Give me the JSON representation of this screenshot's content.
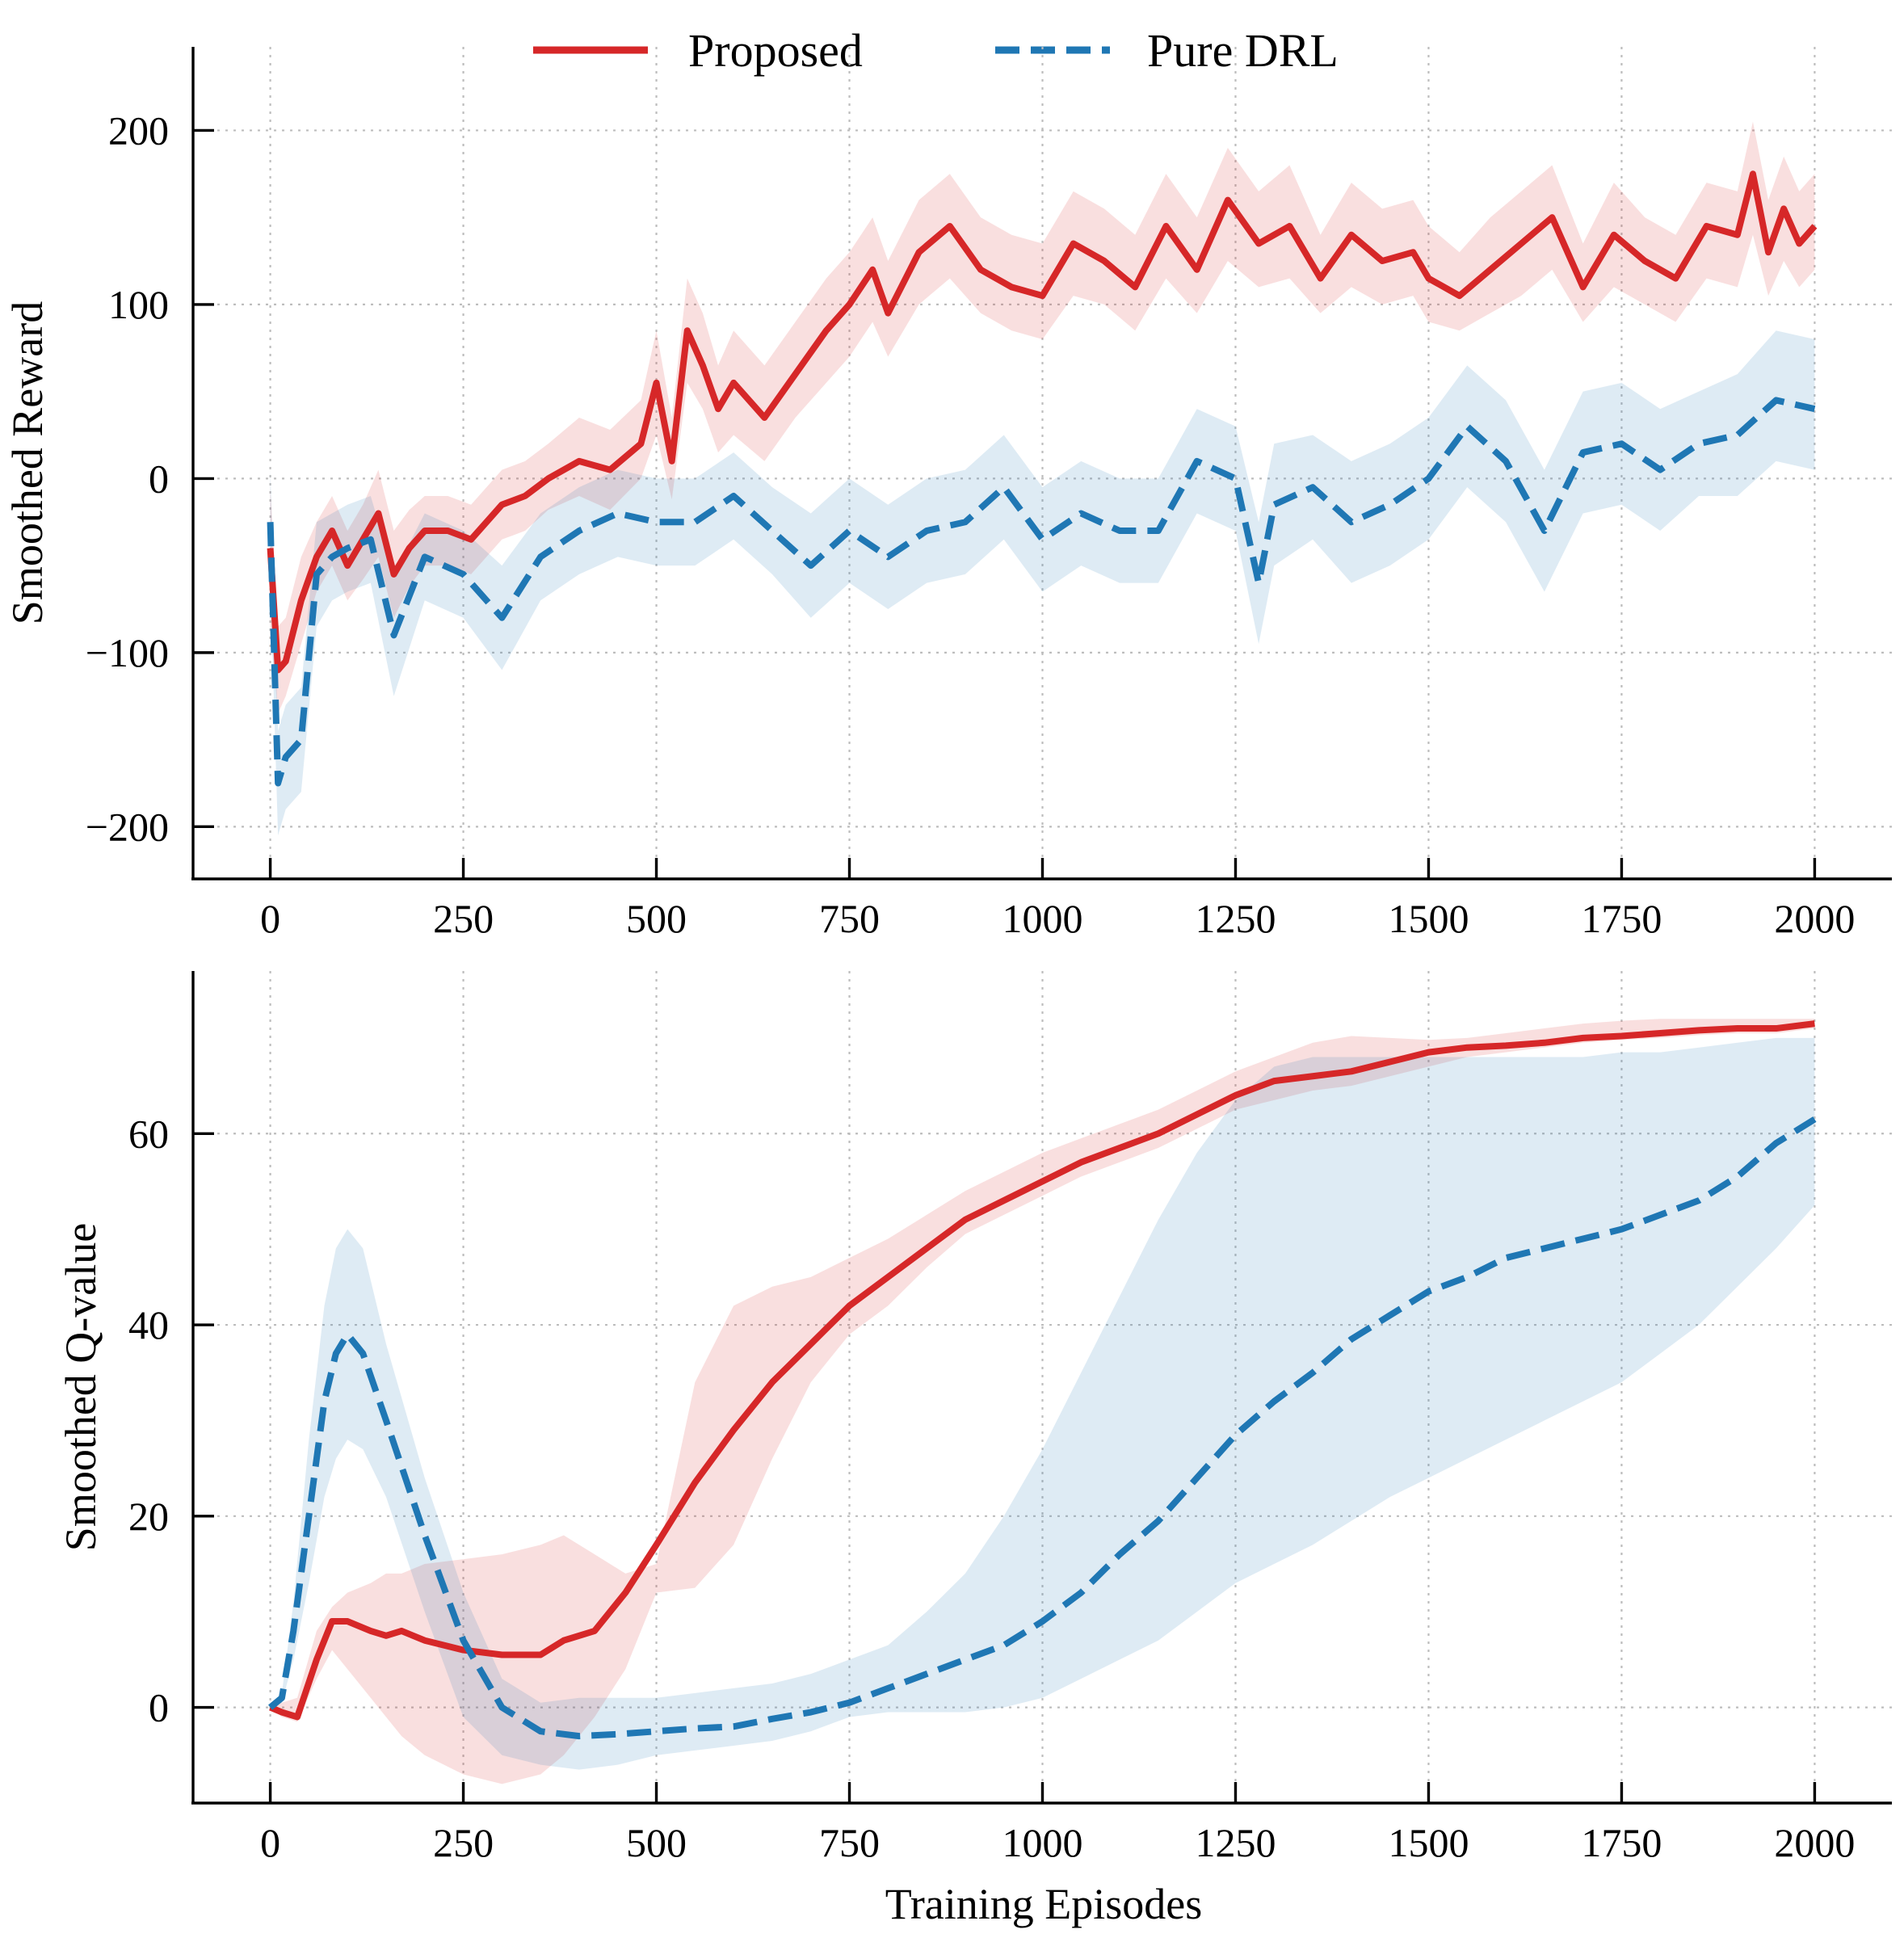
{
  "legend": [
    {
      "name": "Proposed",
      "color": "#d62728",
      "dash": "solid"
    },
    {
      "name": "Pure DRL",
      "color": "#1f77b4",
      "dash": "dashed"
    }
  ],
  "chart_data": [
    {
      "type": "line",
      "id": "reward",
      "title": "",
      "xlabel": "",
      "ylabel": "Smoothed Reward",
      "xlim": [
        -100,
        2100
      ],
      "ylim": [
        -230,
        248
      ],
      "xticks": [
        0,
        250,
        500,
        750,
        1000,
        1250,
        1500,
        1750,
        2000
      ],
      "xtick_labels": [
        "0",
        "250",
        "500",
        "750",
        "1000",
        "1250",
        "1500",
        "1750",
        "2000"
      ],
      "yticks": [
        -200,
        -100,
        0,
        100,
        200
      ],
      "ytick_labels": [
        "−200",
        "−100",
        "0",
        "100",
        "200"
      ],
      "grid": true,
      "legend_position": "top-center",
      "series": [
        {
          "name": "Proposed",
          "color": "#d62728",
          "x": [
            0,
            10,
            20,
            40,
            60,
            80,
            100,
            120,
            140,
            160,
            180,
            200,
            230,
            260,
            300,
            330,
            360,
            400,
            440,
            480,
            500,
            520,
            540,
            560,
            580,
            600,
            640,
            680,
            720,
            750,
            780,
            800,
            840,
            880,
            920,
            960,
            1000,
            1040,
            1080,
            1120,
            1160,
            1200,
            1240,
            1280,
            1320,
            1360,
            1400,
            1440,
            1480,
            1500,
            1540,
            1580,
            1620,
            1660,
            1700,
            1740,
            1780,
            1820,
            1860,
            1900,
            1920,
            1940,
            1960,
            1980,
            2000
          ],
          "y": [
            -40,
            -110,
            -105,
            -70,
            -45,
            -30,
            -50,
            -35,
            -20,
            -55,
            -40,
            -30,
            -30,
            -35,
            -15,
            -10,
            0,
            10,
            5,
            20,
            55,
            10,
            85,
            65,
            40,
            55,
            35,
            60,
            85,
            100,
            120,
            95,
            130,
            145,
            120,
            110,
            105,
            135,
            125,
            110,
            145,
            120,
            160,
            135,
            145,
            115,
            140,
            125,
            130,
            115,
            105,
            120,
            135,
            150,
            110,
            140,
            125,
            115,
            145,
            140,
            175,
            130,
            155,
            135,
            145
          ],
          "band_low": [
            -85,
            -135,
            -125,
            -95,
            -65,
            -50,
            -70,
            -58,
            -45,
            -80,
            -62,
            -50,
            -50,
            -55,
            -35,
            -30,
            -18,
            -10,
            -18,
            0,
            25,
            -12,
            55,
            40,
            15,
            25,
            10,
            35,
            55,
            70,
            90,
            70,
            100,
            115,
            95,
            85,
            80,
            105,
            100,
            85,
            115,
            95,
            125,
            110,
            115,
            95,
            110,
            100,
            105,
            90,
            85,
            95,
            105,
            120,
            90,
            110,
            100,
            90,
            115,
            110,
            140,
            105,
            125,
            110,
            120
          ],
          "band_high": [
            -5,
            -85,
            -80,
            -45,
            -25,
            -10,
            -30,
            -15,
            5,
            -30,
            -18,
            -10,
            -10,
            -15,
            5,
            10,
            20,
            35,
            28,
            45,
            85,
            35,
            115,
            95,
            65,
            85,
            65,
            90,
            115,
            130,
            150,
            125,
            160,
            175,
            150,
            140,
            135,
            165,
            155,
            140,
            175,
            150,
            190,
            165,
            180,
            140,
            170,
            155,
            160,
            145,
            130,
            150,
            165,
            180,
            135,
            170,
            150,
            140,
            170,
            165,
            205,
            160,
            185,
            165,
            175
          ]
        },
        {
          "name": "Pure DRL",
          "color": "#1f77b4",
          "x": [
            0,
            10,
            20,
            40,
            60,
            80,
            100,
            130,
            160,
            200,
            250,
            300,
            350,
            400,
            450,
            500,
            550,
            600,
            650,
            700,
            750,
            800,
            850,
            900,
            950,
            1000,
            1050,
            1100,
            1150,
            1200,
            1250,
            1280,
            1300,
            1350,
            1400,
            1450,
            1500,
            1550,
            1600,
            1650,
            1700,
            1750,
            1800,
            1850,
            1900,
            1950,
            2000
          ],
          "y": [
            -25,
            -175,
            -160,
            -150,
            -55,
            -45,
            -40,
            -35,
            -90,
            -45,
            -55,
            -80,
            -45,
            -30,
            -20,
            -25,
            -25,
            -10,
            -30,
            -50,
            -30,
            -45,
            -30,
            -25,
            -5,
            -35,
            -20,
            -30,
            -30,
            10,
            0,
            -60,
            -15,
            -5,
            -25,
            -15,
            0,
            30,
            10,
            -30,
            15,
            20,
            5,
            20,
            25,
            45,
            40
          ],
          "band_low": [
            -60,
            -205,
            -190,
            -180,
            -85,
            -70,
            -65,
            -60,
            -125,
            -70,
            -80,
            -110,
            -70,
            -55,
            -45,
            -50,
            -50,
            -35,
            -55,
            -80,
            -60,
            -75,
            -60,
            -55,
            -35,
            -65,
            -50,
            -60,
            -60,
            -20,
            -30,
            -95,
            -50,
            -35,
            -60,
            -50,
            -35,
            -5,
            -25,
            -65,
            -20,
            -15,
            -30,
            -10,
            -10,
            10,
            5
          ],
          "band_high": [
            5,
            -145,
            -130,
            -120,
            -25,
            -20,
            -15,
            -10,
            -55,
            -20,
            -30,
            -50,
            -20,
            -5,
            5,
            0,
            0,
            15,
            -5,
            -20,
            0,
            -15,
            0,
            5,
            25,
            -5,
            10,
            0,
            0,
            40,
            30,
            -25,
            20,
            25,
            10,
            20,
            35,
            65,
            45,
            5,
            50,
            55,
            40,
            50,
            60,
            85,
            80
          ]
        }
      ]
    },
    {
      "type": "line",
      "id": "qvalue",
      "title": "",
      "xlabel": "Training Episodes",
      "ylabel": "Smoothed Q-value",
      "xlim": [
        -100,
        2100
      ],
      "ylim": [
        -10,
        77
      ],
      "xticks": [
        0,
        250,
        500,
        750,
        1000,
        1250,
        1500,
        1750,
        2000
      ],
      "xtick_labels": [
        "0",
        "250",
        "500",
        "750",
        "1000",
        "1250",
        "1500",
        "1750",
        "2000"
      ],
      "yticks": [
        0,
        20,
        40,
        60
      ],
      "ytick_labels": [
        "0",
        "20",
        "40",
        "60"
      ],
      "grid": true,
      "series": [
        {
          "name": "Proposed",
          "color": "#d62728",
          "x": [
            0,
            15,
            35,
            60,
            80,
            100,
            130,
            150,
            170,
            200,
            250,
            300,
            350,
            380,
            420,
            460,
            500,
            550,
            600,
            650,
            700,
            750,
            800,
            850,
            900,
            950,
            1000,
            1050,
            1100,
            1150,
            1200,
            1250,
            1300,
            1350,
            1400,
            1450,
            1500,
            1550,
            1600,
            1650,
            1700,
            1750,
            1800,
            1850,
            1900,
            1950,
            2000
          ],
          "y": [
            0,
            -0.5,
            -1,
            5,
            9,
            9,
            8,
            7.5,
            8,
            7,
            6,
            5.5,
            5.5,
            7,
            8,
            12,
            17,
            23.5,
            29,
            34,
            38,
            42,
            45,
            48,
            51,
            53,
            55,
            57,
            58.5,
            60,
            62,
            64,
            65.5,
            66,
            66.5,
            67.5,
            68.5,
            69,
            69.2,
            69.5,
            70,
            70.2,
            70.5,
            70.8,
            71,
            71,
            71.5
          ],
          "band_low": [
            0,
            -1,
            -1.5,
            3,
            6,
            4,
            1,
            -1,
            -3,
            -5,
            -7,
            -8,
            -7,
            -5,
            -1,
            4,
            12,
            12.5,
            17,
            26,
            34,
            39,
            42,
            46,
            49.5,
            51.5,
            53.5,
            55.5,
            57,
            58.5,
            60.5,
            62.5,
            63.5,
            64.5,
            65,
            66,
            67,
            68,
            68.5,
            69,
            69.5,
            69.8,
            70,
            70.3,
            70.5,
            70.5,
            71
          ],
          "band_high": [
            0,
            0.5,
            1,
            8,
            10.5,
            12,
            13,
            14,
            14,
            15,
            15.5,
            16,
            17,
            18,
            16,
            14,
            15,
            34,
            42,
            44,
            45,
            47,
            49,
            51.5,
            54,
            56,
            58,
            59.5,
            61,
            62.5,
            64.5,
            66.5,
            68,
            69.5,
            70.2,
            70,
            69.8,
            70,
            70.5,
            71,
            71.5,
            71.8,
            72,
            72,
            72,
            72,
            72
          ]
        },
        {
          "name": "Pure DRL",
          "color": "#1f77b4",
          "x": [
            0,
            15,
            30,
            50,
            70,
            85,
            100,
            120,
            150,
            200,
            250,
            300,
            350,
            400,
            450,
            500,
            550,
            600,
            650,
            700,
            750,
            800,
            850,
            900,
            950,
            1000,
            1050,
            1100,
            1150,
            1200,
            1250,
            1300,
            1350,
            1400,
            1450,
            1500,
            1550,
            1600,
            1650,
            1700,
            1750,
            1800,
            1850,
            1900,
            1950,
            2000
          ],
          "y": [
            0,
            1,
            8,
            20,
            32,
            37,
            39,
            37,
            30,
            18,
            7,
            0,
            -2.5,
            -3,
            -2.8,
            -2.5,
            -2.2,
            -2,
            -1.2,
            -0.5,
            0.5,
            2,
            3.5,
            5,
            6.5,
            9,
            12,
            16,
            19.5,
            24,
            28.5,
            32,
            35,
            38.5,
            41,
            43.5,
            45,
            47,
            48,
            49,
            50,
            51.5,
            53,
            55.5,
            59,
            61.5
          ],
          "band_low": [
            0,
            0.5,
            5,
            13,
            22,
            26,
            28,
            27,
            22,
            10,
            -1,
            -5,
            -6,
            -6.5,
            -6,
            -5,
            -4.5,
            -4,
            -3.5,
            -2.5,
            -1,
            -0.5,
            -0.5,
            -0.5,
            0,
            1,
            3,
            5,
            7,
            10,
            13,
            15,
            17,
            19.5,
            22,
            24,
            26,
            28,
            30,
            32,
            34,
            37,
            40,
            44,
            48,
            52.5
          ],
          "band_high": [
            0,
            1.5,
            11,
            28,
            42,
            48,
            50,
            48,
            38,
            24,
            12,
            3,
            0.5,
            1,
            1,
            1,
            1.5,
            2,
            2.5,
            3.5,
            5,
            6.5,
            10,
            14,
            20,
            27,
            35,
            43,
            51,
            58,
            63.5,
            67,
            68,
            68,
            68,
            68,
            68,
            68,
            68,
            68,
            68.5,
            68.5,
            69,
            69.5,
            70,
            70
          ]
        }
      ]
    }
  ]
}
